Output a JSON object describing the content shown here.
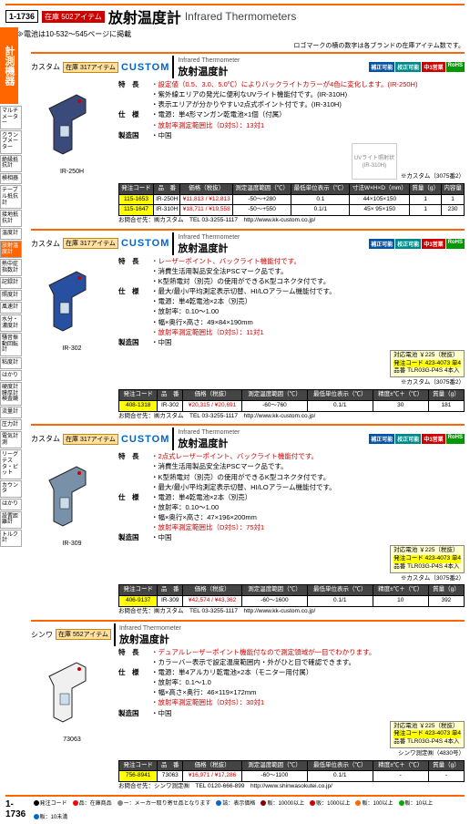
{
  "page_number": "1-1736",
  "category_badge": "在庫 502アイテム",
  "title_jp": "放射温度計",
  "title_en": "Infrared Thermometers",
  "sub_note": "≫電池は10-532～545ページに掲載",
  "logo_note": "ロゴマークの横の数字は各ブランドの在庫アイテム数です。",
  "sidebar": {
    "main": "計測機器",
    "cats": [
      "マルチメーター",
      "クランプメーター",
      "絶縁抵抗計",
      "検相器",
      "テーブル抵抗計",
      "接地抵抗計",
      "温度計",
      "放射温度計",
      "熱中症指数計",
      "記録計",
      "照度計",
      "風速計",
      "水分・濃度計",
      "騒音振動回転計",
      "粘度計",
      "はかり",
      "硬度計膜厚計検査鏡",
      "流量計",
      "圧力計",
      "電気計測",
      "リーグテスタ・ピット",
      "カウンタ",
      "はかり",
      "設置距離計",
      "トルク計"
    ]
  },
  "products": [
    {
      "brand_jp": "カスタム",
      "stock": "在庫 317アイテム",
      "brand_en": "CUSTOM",
      "section_en": "Infrared Thermometer",
      "section_jp": "放射温度計",
      "certs": [
        "補正可能",
        "校正可能",
        "中3営業",
        "RoHS"
      ],
      "image_label": "IR-250H",
      "thermo_color": "#3a4a7a",
      "features": [
        {
          "label": "特　長",
          "val": "・設定値（0.5、3.0、5.0℃）によりバックライトカラーが4色に変化します。(IR-250H)",
          "red": true
        },
        {
          "label": "",
          "val": "・紫外線エリアの発光に便利なUVライト機能付です。(IR-310H)"
        },
        {
          "label": "",
          "val": "・表示エリアが分かりやすい2点式ポイント付です。(IR-310H)"
        },
        {
          "label": "仕　様",
          "val": "・電源：単4形マンガン乾電池×1個（付属）"
        },
        {
          "label": "",
          "val": "・放射率測定範囲比（D対S）：13対1",
          "red": true
        },
        {
          "label": "製造国",
          "val": "・中国"
        }
      ],
      "sub_image_label": "UVライト照射状 (IR-310H)",
      "aux_note": "※カスタム（3075番2）",
      "table": {
        "headers": [
          "発注コード",
          "品　番",
          "価格（税抜）",
          "測定温度範囲（℃）",
          "最低単位表示（℃）",
          "寸法W×H×D（mm）",
          "質量（g）",
          "内容量"
        ],
        "rows": [
          {
            "code": "115-1653",
            "pn": "IR-250H",
            "price": "¥11,813 / ¥12,813",
            "range": "-50～+280",
            "unit": "0.1",
            "dim": "44×105×150",
            "mass": "1",
            "qty": "1"
          },
          {
            "code": "115-1647",
            "pn": "IR-310H",
            "price": "¥18,711 / ¥19,558",
            "range": "-50～+550",
            "unit": "0.1/1",
            "dim": "45× 95×150",
            "mass": "1",
            "qty": "230"
          }
        ]
      },
      "contact": "お問合せ先：㈱カスタム　TEL 03-3255-1117　http://www.kk-custom.co.jp/"
    },
    {
      "brand_jp": "カスタム",
      "stock": "在庫 317アイテム",
      "brand_en": "CUSTOM",
      "section_en": "Infrared Thermometer",
      "section_jp": "放射温度計",
      "certs": [
        "補正可能",
        "校正可能",
        "中3営業",
        "RoHS"
      ],
      "image_label": "IR-302",
      "thermo_color": "#2850a0",
      "features": [
        {
          "label": "特　長",
          "val": "・レーザーポイント、バックライト機能付です。",
          "red": true
        },
        {
          "label": "",
          "val": "・消費生活用製品安全法PSCマーク品です。"
        },
        {
          "label": "",
          "val": "・K型熱電対（別売）の使用ができるK型コネクタ付です。"
        },
        {
          "label": "仕　様",
          "val": "・最大/最小/平均測定表示切替、HI/LOアラーム機能付です。"
        },
        {
          "label": "",
          "val": "・電源：単4乾電池×2本（別売）"
        },
        {
          "label": "",
          "val": "・放射率：0.10～1.00"
        },
        {
          "label": "",
          "val": "・幅×奥行×高さ：49×84×190mm"
        },
        {
          "label": "",
          "val": "・放射率測定範囲比（D対S）：11対1",
          "red": true
        },
        {
          "label": "製造国",
          "val": "・中国"
        }
      ],
      "battery": {
        "title": "対応電池 ￥225（税抜）",
        "code": "発注コード 423-4073 単4",
        "pn": "品番 TLR03G-P4S 4本入"
      },
      "aux_note": "※カスタム（3075番2）",
      "table": {
        "headers": [
          "発注コード",
          "品　番",
          "価格（税抜）",
          "測定温度範囲（℃）",
          "最低単位表示（℃）",
          "精度±℃＋（℃）",
          "質量（g）"
        ],
        "rows": [
          {
            "code": "408-1318",
            "pn": "IR-302",
            "price": "¥20,315 / ¥20,691",
            "range": "-60～760",
            "unit": "0.1/1",
            "dim": "30",
            "mass": "181"
          }
        ]
      },
      "contact": "お問合せ先：㈱カスタム　TEL 03-3255-1117　http://www.kk-custom.co.jp/"
    },
    {
      "brand_jp": "カスタム",
      "stock": "在庫 317アイテム",
      "brand_en": "CUSTOM",
      "section_en": "Infrared Thermometer",
      "section_jp": "放射温度計",
      "certs": [
        "補正可能",
        "校正可能",
        "中3営業",
        "RoHS"
      ],
      "image_label": "IR-309",
      "thermo_color": "#7890a8",
      "features": [
        {
          "label": "特　長",
          "val": "・2点式レーザーポイント、バックライト機能付です。",
          "red": true
        },
        {
          "label": "",
          "val": "・消費生活用製品安全法PSCマーク品です。"
        },
        {
          "label": "",
          "val": "・K型熱電対（別売）の使用ができるK型コネクタ付です。"
        },
        {
          "label": "",
          "val": "・最大/最小/平均測定表示切替、HI/LOアラーム機能付です。"
        },
        {
          "label": "仕　様",
          "val": "・電源：単4乾電池×2本（別売）"
        },
        {
          "label": "",
          "val": "・放射率：0.10～1.00"
        },
        {
          "label": "",
          "val": "・幅×奥行×高さ：47×196×200mm"
        },
        {
          "label": "",
          "val": "・放射率測定範囲比（D対S）：75対1",
          "red": true
        },
        {
          "label": "製造国",
          "val": "・中国"
        }
      ],
      "battery": {
        "title": "対応電池 ￥225（税抜）",
        "code": "発注コード 423-4073 単4",
        "pn": "品番 TLR03G-P4S 4本入"
      },
      "aux_note": "※カスタム（3075番2）",
      "table": {
        "headers": [
          "発注コード",
          "品　番",
          "価格（税抜）",
          "測定温度範囲（℃）",
          "最低単位表示（℃）",
          "精度±℃＋（℃）",
          "質量（g）"
        ],
        "rows": [
          {
            "code": "406-9137",
            "pn": "IR-309",
            "price": "¥42,574 / ¥43,362",
            "range": "-60～1600",
            "unit": "0.1/1",
            "dim": "10",
            "mass": "392"
          }
        ]
      },
      "contact": "お問合せ先：㈱カスタム　TEL 03-3255-1117　http://www.kk-custom.co.jp/"
    },
    {
      "brand_jp": "シンワ",
      "stock": "在庫 552アイテム",
      "brand_en": "",
      "section_en": "Infrared Thermometer",
      "section_jp": "放射温度計",
      "certs": [],
      "image_label": "73063",
      "thermo_color": "#f0f0f0",
      "features": [
        {
          "label": "特　長",
          "val": "・デュアルレーザーポイント機能付なので測定領域が一目でわかります。",
          "red": true
        },
        {
          "label": "",
          "val": "・カラーバー表示で設定温度範囲内・外がひと目で確認できます。"
        },
        {
          "label": "仕　様",
          "val": "・電源：単4アルカリ乾電池×2本（モニター用付属）"
        },
        {
          "label": "",
          "val": "・放射率：0.1～1.0"
        },
        {
          "label": "",
          "val": "・幅×高さ×奥行：46×119×172mm"
        },
        {
          "label": "",
          "val": "・放射率測定範囲比（D対S）：30対1",
          "red": true
        },
        {
          "label": "製造国",
          "val": "・中国"
        }
      ],
      "battery": {
        "title": "対応電池 ￥225（税抜）",
        "code": "発注コード 423-4073 単4",
        "pn": "品番 TLR03G-P4S 4本入"
      },
      "aux_note": "シンワ測定㈱（4830号）",
      "table": {
        "headers": [
          "発注コード",
          "品　番",
          "価格（税抜）",
          "測定温度範囲（℃）",
          "最低単位表示（℃）",
          "精度±℃＋（℃）",
          "質量（g）"
        ],
        "rows": [
          {
            "code": "756-8941",
            "pn": "73063",
            "price": "¥16,971 / ¥17,286",
            "range": "-60～1100",
            "unit": "0.1/1",
            "dim": "-",
            "mass": "-"
          }
        ]
      },
      "contact": "お問合せ先：シンワ測定㈱　TEL 0120-666-899　http://www.shinwasokutei.co.jp/"
    }
  ],
  "footer": {
    "page": "1-1736",
    "legend_labels": [
      "発注コード",
      "品：在庫商品",
      "ー：メーカー取り寄せ品となります",
      "該：表示価格",
      "販：10000以上",
      "販：1000以上",
      "販：100以上",
      "販：10以上",
      "販：10未満"
    ],
    "legend_colors": [
      "#000",
      "#f00",
      "#888",
      "#06c",
      "#800",
      "#c00",
      "#f60",
      "#0a0",
      "#06c"
    ]
  }
}
